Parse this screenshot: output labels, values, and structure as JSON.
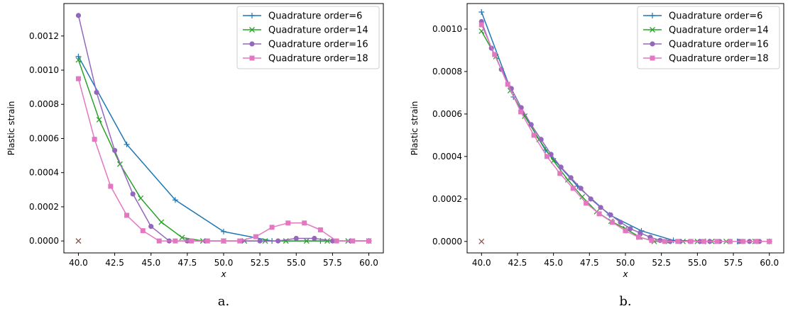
{
  "chart_data": [
    {
      "type": "line",
      "caption": "a.",
      "xlabel": "x",
      "ylabel": "Plastic strain",
      "xlim": [
        39.0,
        61.0
      ],
      "ylim": [
        -7e-05,
        0.00139
      ],
      "xticks": [
        40.0,
        42.5,
        45.0,
        47.5,
        50.0,
        52.5,
        55.0,
        57.5,
        60.0
      ],
      "xtick_labels": [
        "40.0",
        "42.5",
        "45.0",
        "47.5",
        "50.0",
        "52.5",
        "55.0",
        "57.5",
        "60.0"
      ],
      "yticks": [
        0,
        0.0002,
        0.0004,
        0.0006,
        0.0008,
        0.001,
        0.0012
      ],
      "ytick_labels": [
        "0.0000",
        "0.0002",
        "0.0004",
        "0.0006",
        "0.0008",
        "0.0010",
        "0.0012"
      ],
      "legend_position": "top-right",
      "grid": false,
      "stray_marker": {
        "x": 40.0,
        "y": 0,
        "color": "#8c564b",
        "marker": "x"
      },
      "series": [
        {
          "name": "Quadrature order=6",
          "color": "#1f77b4",
          "marker": "plus",
          "x": [
            40.0,
            43.33,
            46.67,
            50.0,
            53.33,
            56.67,
            60.0
          ],
          "y": [
            0.00108,
            0.000565,
            0.00024,
            5.5e-05,
            0.0,
            0.0,
            0.0
          ]
        },
        {
          "name": "Quadrature order=14",
          "color": "#2ca02c",
          "marker": "x",
          "x": [
            40.0,
            41.43,
            42.86,
            44.29,
            45.71,
            47.14,
            48.57,
            50.0,
            51.43,
            52.86,
            54.29,
            55.71,
            57.14,
            58.57,
            60.0
          ],
          "y": [
            0.00106,
            0.00071,
            0.00045,
            0.00025,
            0.00011,
            2e-05,
            0.0,
            0.0,
            0.0,
            0.0,
            0.0,
            0.0,
            0.0,
            0.0,
            0.0
          ]
        },
        {
          "name": "Quadrature order=16",
          "color": "#9467bd",
          "marker": "circle",
          "x": [
            40.0,
            41.25,
            42.5,
            43.75,
            45.0,
            46.25,
            47.5,
            48.75,
            50.0,
            51.25,
            52.5,
            53.75,
            55.0,
            56.25,
            57.5,
            58.75,
            60.0
          ],
          "y": [
            0.00132,
            0.00087,
            0.00053,
            0.000275,
            8.5e-05,
            0.0,
            0.0,
            0.0,
            0.0,
            0.0,
            0.0,
            0.0,
            1.5e-05,
            1.5e-05,
            0.0,
            0.0,
            0.0
          ]
        },
        {
          "name": "Quadrature order=18",
          "color": "#e377c2",
          "marker": "square",
          "x": [
            40.0,
            41.11,
            42.22,
            43.33,
            44.44,
            45.56,
            46.67,
            47.78,
            48.89,
            50.0,
            51.11,
            52.22,
            53.33,
            54.44,
            55.56,
            56.67,
            57.78,
            58.89,
            60.0
          ],
          "y": [
            0.00095,
            0.000595,
            0.00032,
            0.00015,
            6e-05,
            0.0,
            0.0,
            0.0,
            0.0,
            0.0,
            0.0,
            2.5e-05,
            8e-05,
            0.000105,
            0.000105,
            6.5e-05,
            0.0,
            0.0,
            0.0
          ]
        }
      ]
    },
    {
      "type": "line",
      "caption": "b.",
      "xlabel": "x",
      "ylabel": "Plastic strain",
      "xlim": [
        39.0,
        61.0
      ],
      "ylim": [
        -5.4e-05,
        0.00112
      ],
      "xticks": [
        40.0,
        42.5,
        45.0,
        47.5,
        50.0,
        52.5,
        55.0,
        57.5,
        60.0
      ],
      "xtick_labels": [
        "40.0",
        "42.5",
        "45.0",
        "47.5",
        "50.0",
        "52.5",
        "55.0",
        "57.5",
        "60.0"
      ],
      "yticks": [
        0,
        0.0002,
        0.0004,
        0.0006,
        0.0008,
        0.001
      ],
      "ytick_labels": [
        "0.0000",
        "0.0002",
        "0.0004",
        "0.0006",
        "0.0008",
        "0.0010"
      ],
      "legend_position": "top-right",
      "grid": false,
      "stray_marker": {
        "x": 40.0,
        "y": 0,
        "color": "#8c564b",
        "marker": "x"
      },
      "series": [
        {
          "name": "Quadrature order=6",
          "color": "#1f77b4",
          "marker": "plus",
          "x": [
            40.0,
            42.22,
            44.44,
            46.67,
            48.89,
            51.11,
            53.33,
            55.56,
            57.78,
            60.0
          ],
          "y": [
            0.00108,
            0.00068,
            0.00043,
            0.00026,
            0.000125,
            5e-05,
            5e-06,
            0.0,
            0.0,
            0.0
          ]
        },
        {
          "name": "Quadrature order=14",
          "color": "#2ca02c",
          "marker": "x",
          "x": [
            40.0,
            41.0,
            42.0,
            43.0,
            44.0,
            45.0,
            46.0,
            47.0,
            48.0,
            49.0,
            50.0,
            51.0,
            52.0,
            53.0,
            54.0,
            55.0,
            56.0,
            57.0,
            58.0,
            59.0,
            60.0
          ],
          "y": [
            0.00099,
            0.00087,
            0.00071,
            0.00059,
            0.00048,
            0.00038,
            0.00029,
            0.00021,
            0.00014,
            9.5e-05,
            6e-05,
            2e-05,
            0.0,
            0.0,
            0.0,
            0.0,
            0.0,
            0.0,
            0.0,
            0.0,
            0.0
          ]
        },
        {
          "name": "Quadrature order=16",
          "color": "#9467bd",
          "marker": "circle",
          "x": [
            40.0,
            40.69,
            41.38,
            42.07,
            42.76,
            43.45,
            44.14,
            44.83,
            45.52,
            46.21,
            46.9,
            47.59,
            48.28,
            48.97,
            49.66,
            50.34,
            51.03,
            51.72,
            52.41,
            53.1,
            53.79,
            54.48,
            55.17,
            55.86,
            56.55,
            57.24,
            57.93,
            58.62,
            59.31,
            60.0
          ],
          "y": [
            0.001035,
            0.00091,
            0.00081,
            0.00072,
            0.00063,
            0.00055,
            0.00048,
            0.00041,
            0.00035,
            0.0003,
            0.00025,
            0.0002,
            0.00016,
            0.000125,
            9e-05,
            6e-05,
            4e-05,
            2e-05,
            5e-06,
            0.0,
            0.0,
            0.0,
            0.0,
            0.0,
            0.0,
            0.0,
            0.0,
            0.0,
            0.0,
            0.0
          ]
        },
        {
          "name": "Quadrature order=18",
          "color": "#e377c2",
          "marker": "square",
          "x": [
            40.0,
            40.91,
            41.82,
            42.73,
            43.64,
            44.55,
            45.45,
            46.36,
            47.27,
            48.18,
            49.09,
            50.0,
            50.91,
            51.82,
            52.73,
            53.64,
            54.55,
            55.45,
            56.36,
            57.27,
            58.18,
            59.09,
            60.0
          ],
          "y": [
            0.00102,
            0.00088,
            0.00074,
            0.00061,
            0.0005,
            0.0004,
            0.00032,
            0.00025,
            0.00018,
            0.00013,
            9e-05,
            5e-05,
            2e-05,
            5e-06,
            0.0,
            0.0,
            0.0,
            0.0,
            0.0,
            0.0,
            0.0,
            0.0,
            0.0
          ]
        }
      ]
    }
  ]
}
